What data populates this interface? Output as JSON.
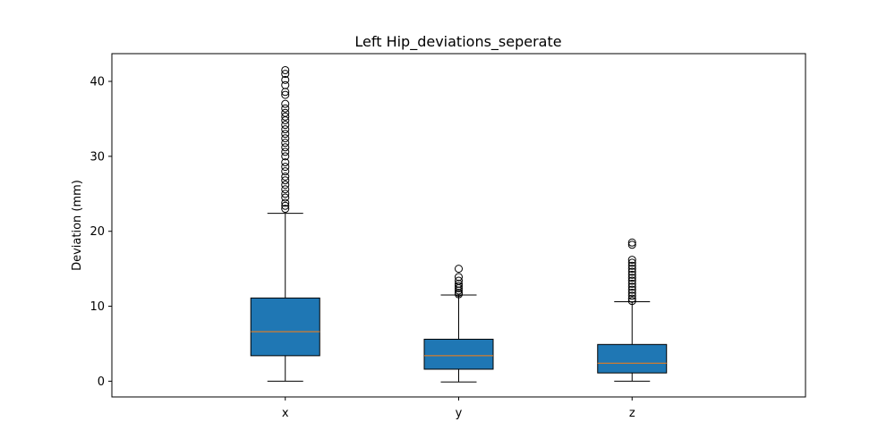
{
  "chart_data": {
    "type": "box",
    "title": "Left Hip_deviations_seperate",
    "xlabel": "",
    "ylabel": "Deviation (mm)",
    "ylim": [
      -2.1,
      43.7
    ],
    "yticks": [
      0,
      10,
      20,
      30,
      40
    ],
    "categories": [
      "x",
      "y",
      "z"
    ],
    "box_color": "#1f77b4",
    "median_color": "#ff7f0e",
    "grid": false,
    "boxes": [
      {
        "label": "x",
        "whisker_low": 0.0,
        "q1": 3.4,
        "median": 6.6,
        "q3": 11.1,
        "whisker_high": 22.4,
        "outliers": [
          23.0,
          23.4,
          23.8,
          24.5,
          25.0,
          25.6,
          26.2,
          26.8,
          27.3,
          28.0,
          28.6,
          29.2,
          30.0,
          30.6,
          31.2,
          31.8,
          32.4,
          33.0,
          33.6,
          34.2,
          34.8,
          35.3,
          35.8,
          36.4,
          37.0,
          38.2,
          38.6,
          39.5,
          40.2,
          41.0,
          41.5
        ]
      },
      {
        "label": "y",
        "whisker_low": -0.1,
        "q1": 1.6,
        "median": 3.4,
        "q3": 5.6,
        "whisker_high": 11.5,
        "outliers": [
          11.6,
          11.8,
          12.1,
          12.4,
          12.7,
          13.0,
          13.4,
          13.9,
          15.0
        ]
      },
      {
        "label": "z",
        "whisker_low": 0.0,
        "q1": 1.1,
        "median": 2.4,
        "q3": 4.9,
        "whisker_high": 10.6,
        "outliers": [
          10.7,
          11.0,
          11.4,
          11.8,
          12.2,
          12.6,
          13.0,
          13.4,
          13.8,
          14.2,
          14.6,
          15.0,
          15.4,
          15.8,
          16.2,
          18.2,
          18.5
        ]
      }
    ]
  }
}
